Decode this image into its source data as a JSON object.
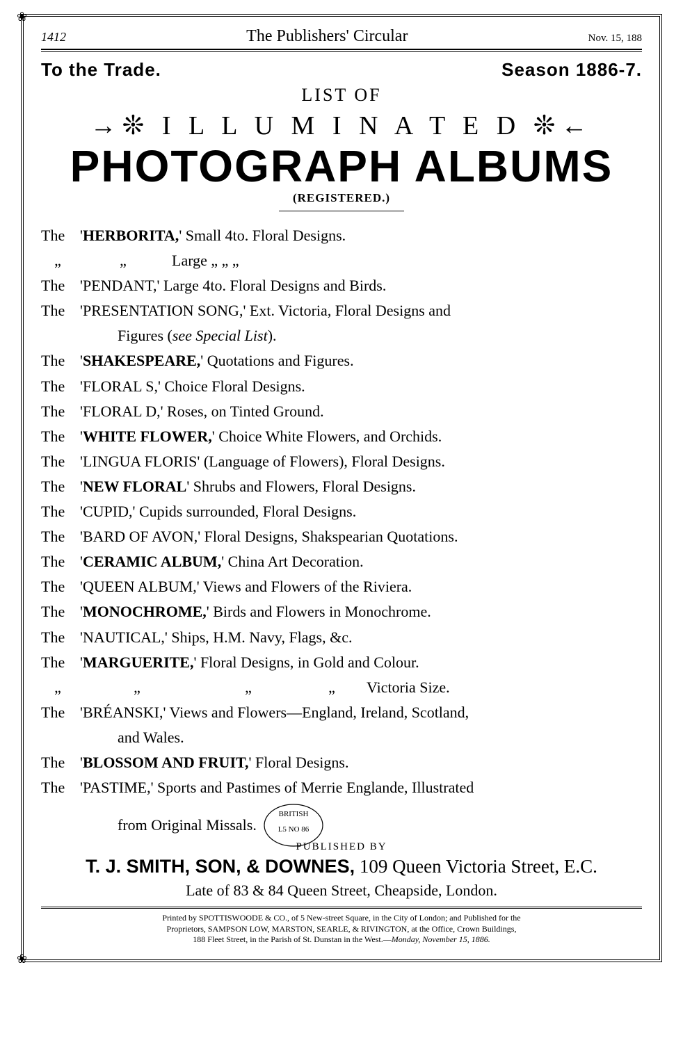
{
  "header": {
    "page_number": "1412",
    "journal_title": "The Publishers' Circular",
    "date": "Nov. 15, 188"
  },
  "trade": {
    "to_trade": "To the Trade.",
    "season": "Season 1886-7."
  },
  "headline": {
    "list_of": "LIST OF",
    "illuminated_left_orn": "→❊",
    "illuminated": "I L L U M I N A T E D",
    "illuminated_right_orn": "❊←",
    "photograph": "PHOTOGRAPH ALBUMS",
    "registered": "(REGISTERED.)"
  },
  "entries": [
    {
      "prefix": "The",
      "open": "'",
      "bold": "HERBORITA,",
      "close": "'",
      "rest": " Small 4to. Floral Designs."
    },
    {
      "ditto": true,
      "rest": "Large  „       „        „"
    },
    {
      "prefix": "The",
      "plain": " 'PENDANT,' Large 4to. Floral Designs and Birds."
    },
    {
      "prefix": "The",
      "plain": " 'PRESENTATION SONG,' Ext. Victoria, Floral Designs and"
    },
    {
      "indent": true,
      "plain_pre": "Figures (",
      "italic": "see Special List",
      "plain_post": ")."
    },
    {
      "prefix": "The",
      "open": " '",
      "bold": "SHAKESPEARE,",
      "close": "'",
      "rest": " Quotations and Figures."
    },
    {
      "prefix": "The",
      "plain": " 'FLORAL S,' Choice Floral Designs."
    },
    {
      "prefix": "The",
      "plain": " 'FLORAL D,' Roses, on Tinted Ground."
    },
    {
      "prefix": "The",
      "open": " '",
      "bold": "WHITE FLOWER,",
      "close": "'",
      "rest": " Choice White Flowers, and Orchids."
    },
    {
      "prefix": "The",
      "plain": " 'LINGUA FLORIS' (Language of Flowers), Floral Designs."
    },
    {
      "prefix": "The",
      "open": " '",
      "bold": "NEW FLORAL",
      "close": "'",
      "rest": " Shrubs and Flowers, Floral Designs."
    },
    {
      "prefix": "The",
      "plain": " 'CUPID,' Cupids surrounded, Floral Designs."
    },
    {
      "prefix": "The",
      "plain": " 'BARD OF AVON,' Floral Designs, Shakspearian Quotations."
    },
    {
      "prefix": "The",
      "open": " '",
      "bold": "CERAMIC ALBUM,",
      "close": "'",
      "rest": " China Art Decoration."
    },
    {
      "prefix": "The",
      "plain": " 'QUEEN ALBUM,' Views and Flowers of the Riviera."
    },
    {
      "prefix": "The",
      "open": " '",
      "bold": "MONOCHROME,",
      "close": "'",
      "rest": " Birds and Flowers in Monochrome."
    },
    {
      "prefix": "The",
      "plain": " 'NAUTICAL,' Ships, H.M. Navy, Flags, &c."
    },
    {
      "prefix": "The",
      "open": " '",
      "bold": "MARGUERITE,",
      "close": "'",
      "rest": " Floral Designs, in Gold and Colour."
    },
    {
      "ditto3": true,
      "rest": "Victoria Size."
    },
    {
      "prefix": "The",
      "plain": " 'BRÉANSKI,' Views and Flowers—England, Ireland, Scotland,"
    },
    {
      "indent": true,
      "plain": "and Wales."
    },
    {
      "prefix": "The",
      "open": " '",
      "bold": "BLOSSOM AND FRUIT,",
      "close": "'",
      "rest": " Floral Designs."
    },
    {
      "prefix": "The",
      "plain": " 'PASTIME,' Sports and Pastimes of Merrie Englande, Illustrated"
    },
    {
      "indent": true,
      "plain": "from Original Missals.",
      "stamp": true
    }
  ],
  "stamp": {
    "top_text": "BRITISH",
    "mid_text": "L5 NO 86",
    "r": 40,
    "stroke": "#000000"
  },
  "publisher": {
    "published_by": "PUBLISHED BY",
    "firm": "T. J. SMITH, SON, & DOWNES,",
    "addr": " 109 Queen Victoria Street, E.C.",
    "late": "Late of 83 & 84 Queen Street, Cheapside, London."
  },
  "colophon": {
    "line1": "Printed by SPOTTISWOODE & CO., of 5 New-street Square, in the City of London; and Published for the",
    "line2": "Proprietors, SAMPSON LOW, MARSTON, SEARLE, & RIVINGTON, at the Office, Crown Buildings,",
    "line3": "188 Fleet Street, in the Parish of St. Dunstan in the West.—",
    "line3_italic": "Monday, November 15, 1886."
  },
  "colors": {
    "text": "#000000",
    "background": "#ffffff"
  }
}
